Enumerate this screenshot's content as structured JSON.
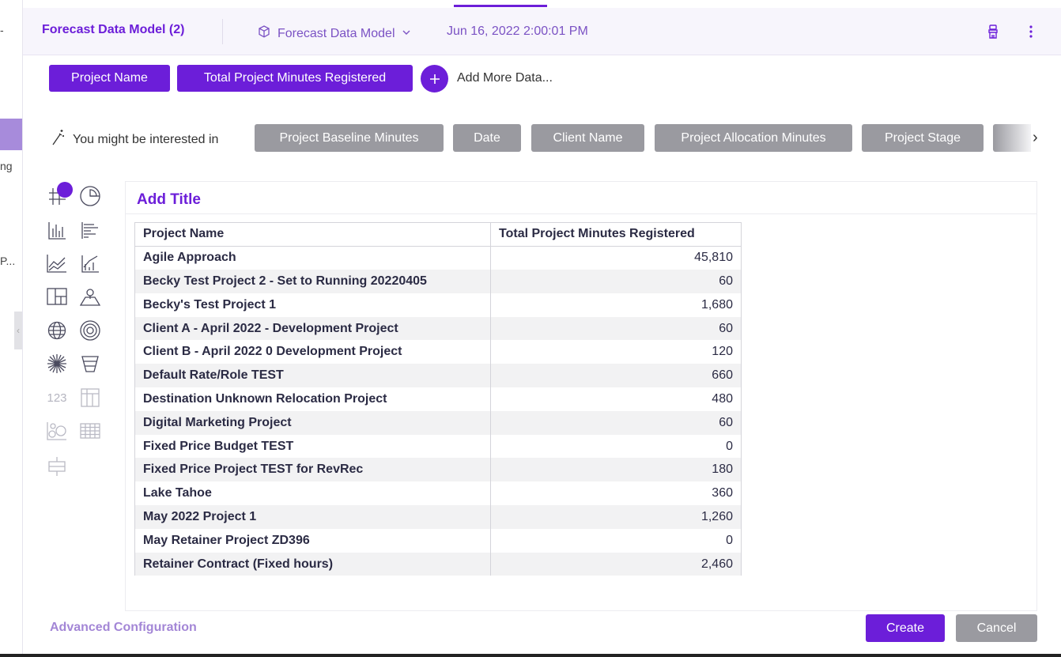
{
  "left_strip": {
    "items": [
      "-",
      "ng",
      "P..."
    ],
    "collapse_glyph": "‹"
  },
  "header": {
    "title": "Forecast Data Model (2)",
    "model_name": "Forecast Data Model",
    "timestamp": "Jun 16, 2022 2:00:01 PM",
    "icons": [
      "cube-icon",
      "chevron-down-icon",
      "paintbrush-icon",
      "kebab-menu-icon"
    ]
  },
  "selected_fields": [
    "Project Name",
    "Total Project Minutes Registered"
  ],
  "add_more_label": "Add More Data...",
  "suggestions": {
    "label": "You might be interested in",
    "chips": [
      "Project Baseline Minutes",
      "Date",
      "Client Name",
      "Project Allocation Minutes",
      "Project Stage"
    ],
    "next_glyph": "›"
  },
  "viz_types": [
    "table-icon",
    "pie-chart-icon",
    "column-chart-icon",
    "bar-chart-icon",
    "line-chart-icon",
    "combo-chart-icon",
    "treemap-icon",
    "map-icon",
    "globe-icon",
    "gauge-icon",
    "network-icon",
    "funnel-icon",
    "kpi-number-icon",
    "pivot-table-icon",
    "scatter-icon",
    "heatmap-grid-icon",
    "boxplot-icon"
  ],
  "viz_kpi_label": "123",
  "preview": {
    "title": "Add Title",
    "columns": [
      "Project Name",
      "Total Project Minutes Registered"
    ],
    "rows": [
      [
        "Agile Approach",
        "45,810"
      ],
      [
        "Becky Test Project 2 - Set to Running 20220405",
        "60"
      ],
      [
        "Becky's Test Project 1",
        "1,680"
      ],
      [
        "Client A - April 2022 - Development Project",
        "60"
      ],
      [
        "Client B - April 2022 0 Development Project",
        "120"
      ],
      [
        "Default Rate/Role TEST",
        "660"
      ],
      [
        "Destination Unknown Relocation Project",
        "480"
      ],
      [
        "Digital Marketing Project",
        "60"
      ],
      [
        "Fixed Price Budget TEST",
        "0"
      ],
      [
        "Fixed Price Project TEST for RevRec",
        "180"
      ],
      [
        "Lake Tahoe",
        "360"
      ],
      [
        "May 2022 Project 1",
        "1,260"
      ],
      [
        "May Retainer Project ZD396",
        "0"
      ],
      [
        "Retainer Contract (Fixed hours)",
        "2,460"
      ]
    ]
  },
  "footer": {
    "advanced_label": "Advanced Configuration",
    "create_label": "Create",
    "cancel_label": "Cancel"
  },
  "colors": {
    "accent": "#6c1ed9",
    "chip_gray": "#9a9aa0",
    "header_bg": "#f7f5fc"
  }
}
